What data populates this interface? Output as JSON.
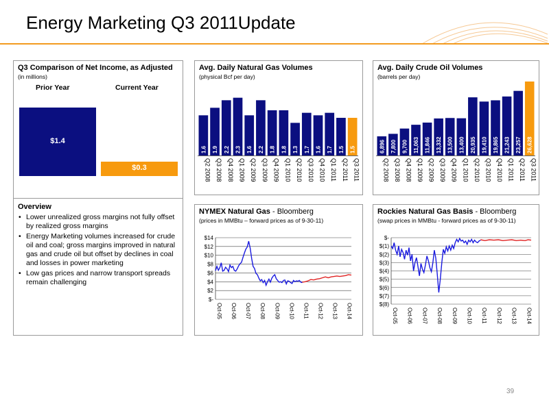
{
  "slide": {
    "title": "Energy Marketing Q3 2011Update",
    "page_number": "39"
  },
  "colors": {
    "navy": "#0b0f80",
    "orange": "#f79a0e",
    "accent_rule": "#f39a1e",
    "nymex_forward": "#e02020",
    "historical_line": "#1a1adf"
  },
  "net_income": {
    "title": "Q3 Comparison of Net Income, as Adjusted",
    "subtitle": "(in millions)",
    "prior_label": "Prior Year",
    "current_label": "Current Year",
    "prior_value_label": "$1.4",
    "current_value_label": "$0.3"
  },
  "overview": {
    "title": "Overview",
    "bullets": [
      "Lower unrealized gross margins not fully offset by realized gross margins",
      "Energy Marketing volumes increased for crude oil and coal; gross margins improved in natural gas and crude oil but offset by declines in coal and losses in power marketing",
      "Low gas prices and narrow transport spreads remain challenging"
    ]
  },
  "panels": {
    "gas": {
      "title": "Avg. Daily Natural Gas Volumes",
      "subtitle": "(physical Bcf per day)"
    },
    "oil": {
      "title": "Avg. Daily Crude Oil Volumes",
      "subtitle": "(barrels per day)"
    },
    "nymex": {
      "title": "NYMEX Natural Gas",
      "title_suffix": " - Bloomberg",
      "subtitle": "(prices in MMBtu – forward prices as of 9-30-11)"
    },
    "rockies": {
      "title": "Rockies Natural Gas Basis",
      "title_suffix": " - Bloomberg",
      "subtitle": "(swap prices in MMBtu - forward prices as of 9-30-11)"
    }
  },
  "chart_data": [
    {
      "id": "net_income",
      "type": "bar",
      "categories": [
        "Prior Year",
        "Current Year"
      ],
      "values": [
        1.4,
        0.3
      ],
      "value_labels": [
        "$1.4",
        "$0.3"
      ],
      "title": "Q3 Comparison of Net Income, as Adjusted",
      "ylabel": "(in millions)",
      "ylim": [
        0,
        1.4
      ]
    },
    {
      "id": "gas_volumes",
      "type": "bar",
      "title": "Avg. Daily Natural Gas Volumes",
      "ylabel": "(physical Bcf per day)",
      "categories": [
        "Q2 2008",
        "Q3 2008",
        "Q4 2008",
        "Q1 2009",
        "Q2 2009",
        "Q3 2009",
        "Q4 2009",
        "Q1 2010",
        "Q2 2010",
        "Q3 2010",
        "Q4 2010",
        "Q1 2011",
        "Q2 2011",
        "Q3 2011"
      ],
      "values": [
        1.6,
        1.9,
        2.2,
        2.3,
        1.6,
        2.2,
        1.8,
        1.8,
        1.3,
        1.7,
        1.6,
        1.7,
        1.5,
        1.5
      ],
      "value_labels": [
        "1.6",
        "1.9",
        "2.2",
        "2.3",
        "1.6",
        "2.2",
        "1.8",
        "1.8",
        "1.3",
        "1.7",
        "1.6",
        "1.7",
        "1.5",
        "1.5"
      ],
      "highlight_last": true,
      "ylim": [
        0,
        2.4
      ]
    },
    {
      "id": "oil_volumes",
      "type": "bar",
      "title": "Avg. Daily Crude Oil Volumes",
      "ylabel": "(barrels per day)",
      "categories": [
        "Q2 2008",
        "Q3 2008",
        "Q4 2008",
        "Q1 2009",
        "Q2 2009",
        "Q3 2009",
        "Q4 2009",
        "Q1 2010",
        "Q2 2010",
        "Q3 2010",
        "Q4 2010",
        "Q1 2011",
        "Q2 2011",
        "Q3 2011"
      ],
      "values": [
        6896,
        7800,
        9700,
        11063,
        11846,
        13332,
        13500,
        13400,
        20935,
        19410,
        19865,
        21243,
        23257,
        26628
      ],
      "value_labels": [
        "6,896",
        "7,800",
        "9,700",
        "11,063",
        "11,846",
        "13,332",
        "13,500",
        "13,400",
        "20,935",
        "19,410",
        "19,865",
        "21,243",
        "23,257",
        "26,628"
      ],
      "highlight_last": true,
      "ylim": [
        0,
        26628
      ]
    },
    {
      "id": "nymex",
      "type": "line",
      "title": "NYMEX Natural Gas",
      "ylabel": "(prices in MMBtu – forward prices as of 9-30-11)",
      "x_ticks": [
        "Oct-05",
        "Oct-06",
        "Oct-07",
        "Oct-08",
        "Oct-09",
        "Oct-10",
        "Oct-11",
        "Oct-12",
        "Oct-13",
        "Oct-14"
      ],
      "y_ticks": [
        "$-",
        "$2",
        "$4",
        "$6",
        "$8",
        "$10",
        "$12",
        "$14"
      ],
      "ylim": [
        0,
        14
      ],
      "xlim": [
        0,
        9.4
      ],
      "series": [
        {
          "values": [
            [
              0,
              6.5
            ],
            [
              0.1,
              7.5
            ],
            [
              0.2,
              6.6
            ],
            [
              0.3,
              7.2
            ],
            [
              0.4,
              8.3
            ],
            [
              0.5,
              6.4
            ],
            [
              0.6,
              6.6
            ],
            [
              0.7,
              7.3
            ],
            [
              0.8,
              6.9
            ],
            [
              0.9,
              6.3
            ],
            [
              1,
              7.8
            ],
            [
              1.1,
              7.2
            ],
            [
              1.2,
              7.5
            ],
            [
              1.3,
              6.6
            ],
            [
              1.4,
              6.4
            ],
            [
              1.5,
              6.9
            ],
            [
              1.6,
              7.6
            ],
            [
              1.7,
              8.1
            ],
            [
              1.8,
              8.4
            ],
            [
              1.9,
              9.5
            ],
            [
              2,
              10.5
            ],
            [
              2.1,
              11.4
            ],
            [
              2.2,
              11.9
            ],
            [
              2.3,
              13.2
            ],
            [
              2.4,
              11.6
            ],
            [
              2.5,
              9.3
            ],
            [
              2.6,
              7.5
            ],
            [
              2.7,
              7.0
            ],
            [
              2.8,
              5.9
            ],
            [
              2.9,
              5.6
            ],
            [
              3,
              4.8
            ],
            [
              3.1,
              4.2
            ],
            [
              3.2,
              4.5
            ],
            [
              3.3,
              3.8
            ],
            [
              3.4,
              4.3
            ],
            [
              3.5,
              3.2
            ],
            [
              3.6,
              4.0
            ],
            [
              3.7,
              4.6
            ],
            [
              3.8,
              3.9
            ],
            [
              3.9,
              4.8
            ],
            [
              4,
              5.3
            ],
            [
              4.1,
              5.6
            ],
            [
              4.2,
              4.7
            ],
            [
              4.3,
              4.3
            ],
            [
              4.4,
              3.9
            ],
            [
              4.5,
              4.0
            ],
            [
              4.6,
              3.8
            ],
            [
              4.7,
              4.3
            ],
            [
              4.8,
              4.4
            ],
            [
              4.9,
              3.5
            ],
            [
              5,
              4.2
            ],
            [
              5.1,
              4.1
            ],
            [
              5.2,
              3.8
            ],
            [
              5.3,
              3.6
            ],
            [
              5.4,
              4.3
            ],
            [
              5.5,
              4.0
            ],
            [
              5.6,
              4.2
            ],
            [
              5.7,
              4.1
            ],
            [
              5.8,
              4.3
            ],
            [
              5.9,
              3.9
            ],
            [
              6,
              3.8
            ]
          ]
        },
        {
          "values": [
            [
              6,
              3.9
            ],
            [
              6.2,
              4.0
            ],
            [
              6.4,
              4.2
            ],
            [
              6.6,
              4.5
            ],
            [
              6.8,
              4.4
            ],
            [
              7,
              4.6
            ],
            [
              7.2,
              4.7
            ],
            [
              7.4,
              4.9
            ],
            [
              7.6,
              5.1
            ],
            [
              7.8,
              4.9
            ],
            [
              8,
              5.1
            ],
            [
              8.2,
              5.2
            ],
            [
              8.4,
              5.3
            ],
            [
              8.6,
              5.2
            ],
            [
              8.8,
              5.3
            ],
            [
              9,
              5.4
            ],
            [
              9.2,
              5.6
            ],
            [
              9.4,
              5.5
            ]
          ]
        }
      ]
    },
    {
      "id": "rockies_basis",
      "type": "line",
      "title": "Rockies Natural Gas Basis",
      "ylabel": "(swap prices in MMBtu - forward prices as of 9-30-11)",
      "x_ticks": [
        "Oct-05",
        "Oct-06",
        "Oct-07",
        "Oct-08",
        "Oct-09",
        "Oct-10",
        "Oct-11",
        "Oct-12",
        "Oct-13",
        "Oct-14"
      ],
      "y_ticks": [
        "$(8)",
        "$(7)",
        "$(6)",
        "$(5)",
        "$(4)",
        "$(3)",
        "$(2)",
        "$(1)",
        "$-"
      ],
      "ylim": [
        -8,
        0
      ],
      "xlim": [
        0,
        9.4
      ],
      "series": [
        {
          "values": [
            [
              0,
              -1.0
            ],
            [
              0.1,
              -1.3
            ],
            [
              0.2,
              -0.6
            ],
            [
              0.3,
              -1.5
            ],
            [
              0.4,
              -2.0
            ],
            [
              0.5,
              -1.0
            ],
            [
              0.6,
              -2.3
            ],
            [
              0.7,
              -1.4
            ],
            [
              0.8,
              -1.8
            ],
            [
              0.9,
              -2.6
            ],
            [
              1,
              -1.5
            ],
            [
              1.1,
              -2.1
            ],
            [
              1.2,
              -1.2
            ],
            [
              1.3,
              -2.8
            ],
            [
              1.4,
              -2.0
            ],
            [
              1.5,
              -4.0
            ],
            [
              1.6,
              -3.0
            ],
            [
              1.7,
              -2.4
            ],
            [
              1.8,
              -3.5
            ],
            [
              1.9,
              -4.6
            ],
            [
              2,
              -3.1
            ],
            [
              2.1,
              -3.8
            ],
            [
              2.2,
              -4.2
            ],
            [
              2.3,
              -3.3
            ],
            [
              2.4,
              -2.2
            ],
            [
              2.5,
              -2.8
            ],
            [
              2.6,
              -3.6
            ],
            [
              2.7,
              -4.1
            ],
            [
              2.8,
              -3.0
            ],
            [
              2.9,
              -1.5
            ],
            [
              3,
              -2.5
            ],
            [
              3.1,
              -4.5
            ],
            [
              3.2,
              -6.6
            ],
            [
              3.3,
              -5.0
            ],
            [
              3.4,
              -3.0
            ],
            [
              3.5,
              -1.4
            ],
            [
              3.6,
              -1.9
            ],
            [
              3.7,
              -1.1
            ],
            [
              3.8,
              -1.6
            ],
            [
              3.9,
              -1.0
            ],
            [
              4,
              -1.5
            ],
            [
              4.1,
              -0.9
            ],
            [
              4.2,
              -1.3
            ],
            [
              4.3,
              -0.6
            ],
            [
              4.4,
              -0.2
            ],
            [
              4.5,
              -0.5
            ],
            [
              4.6,
              -0.1
            ],
            [
              4.7,
              -0.4
            ],
            [
              4.8,
              -0.3
            ],
            [
              4.9,
              -0.6
            ],
            [
              5,
              -0.4
            ],
            [
              5.1,
              -0.8
            ],
            [
              5.2,
              -0.3
            ],
            [
              5.3,
              -0.5
            ],
            [
              5.4,
              -0.2
            ],
            [
              5.5,
              -0.6
            ],
            [
              5.6,
              -0.3
            ],
            [
              5.7,
              -0.5
            ],
            [
              5.8,
              -0.6
            ],
            [
              5.9,
              -0.4
            ],
            [
              6,
              -0.3
            ]
          ]
        },
        {
          "values": [
            [
              6,
              -0.25
            ],
            [
              6.3,
              -0.35
            ],
            [
              6.6,
              -0.25
            ],
            [
              6.9,
              -0.3
            ],
            [
              7.2,
              -0.25
            ],
            [
              7.5,
              -0.35
            ],
            [
              7.8,
              -0.3
            ],
            [
              8.1,
              -0.25
            ],
            [
              8.4,
              -0.35
            ],
            [
              8.7,
              -0.3
            ],
            [
              9,
              -0.35
            ],
            [
              9.2,
              -0.25
            ],
            [
              9.4,
              -0.3
            ]
          ]
        }
      ]
    }
  ]
}
